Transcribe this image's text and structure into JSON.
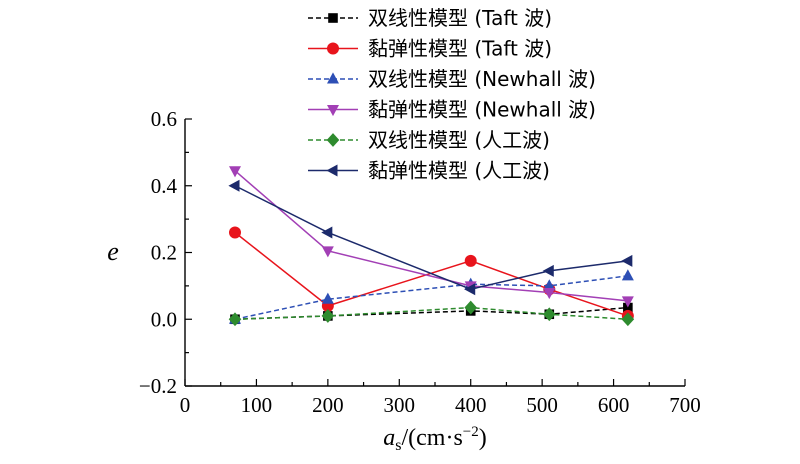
{
  "chart_data": {
    "type": "line",
    "xlabel_main": "a",
    "xlabel_sub": "s",
    "xlabel_unit": "/(cm·s",
    "xlabel_sup": "−2",
    "xlabel_close": ")",
    "ylabel": "e",
    "xlim": [
      0,
      700
    ],
    "ylim": [
      -0.2,
      0.6
    ],
    "xticks": [
      0,
      100,
      200,
      300,
      400,
      500,
      600,
      700
    ],
    "xtick_labels": [
      "0",
      "100",
      "200",
      "300",
      "400",
      "500",
      "600",
      "700"
    ],
    "yticks": [
      -0.2,
      0.0,
      0.2,
      0.4,
      0.6
    ],
    "ytick_labels": [
      "−0.2",
      "0.0",
      "0.2",
      "0.4",
      "0.6"
    ],
    "legend_position": "top",
    "x": [
      70,
      200,
      400,
      510,
      620
    ],
    "series": [
      {
        "name": "双线性模型 (Taft 波)",
        "values": [
          0.0,
          0.01,
          0.025,
          0.015,
          0.035
        ],
        "color": "#000000",
        "dash": "dashed",
        "marker": "square"
      },
      {
        "name": "黏弹性模型 (Taft 波)",
        "values": [
          0.26,
          0.04,
          0.175,
          0.09,
          0.01
        ],
        "color": "#e8141c",
        "dash": "solid",
        "marker": "circle"
      },
      {
        "name": "双线性模型 (Newhall 波)",
        "values": [
          0.0,
          0.06,
          0.105,
          0.1,
          0.13
        ],
        "color": "#2d4fb5",
        "dash": "dashed",
        "marker": "triangle-up"
      },
      {
        "name": "黏弹性模型 (Newhall 波)",
        "values": [
          0.445,
          0.205,
          0.1,
          0.08,
          0.055
        ],
        "color": "#a23fb5",
        "dash": "solid",
        "marker": "triangle-down"
      },
      {
        "name": "双线性模型 (人工波)",
        "values": [
          0.0,
          0.01,
          0.035,
          0.015,
          0.0
        ],
        "color": "#2e8b2e",
        "dash": "dashed",
        "marker": "diamond"
      },
      {
        "name": "黏弹性模型 (人工波)",
        "values": [
          0.4,
          0.26,
          0.09,
          0.145,
          0.175
        ],
        "color": "#1c2a6b",
        "dash": "solid",
        "marker": "triangle-left"
      }
    ]
  }
}
